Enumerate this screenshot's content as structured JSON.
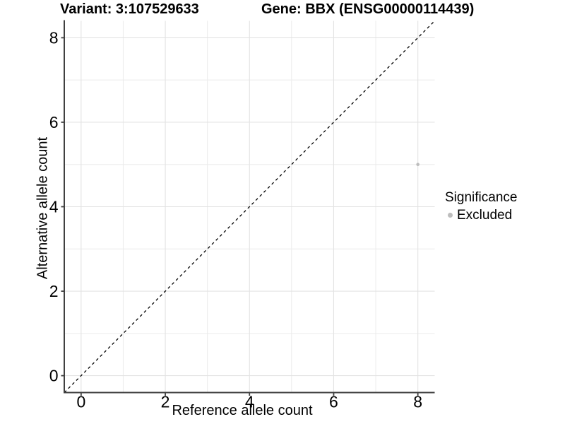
{
  "header": {
    "variant_title": "Variant: 3:107529633",
    "gene_title": "Gene: BBX (ENSG00000114439)"
  },
  "chart_data": {
    "type": "scatter",
    "title": "Variant: 3:107529633    Gene: BBX (ENSG00000114439)",
    "xlabel": "Reference allele count",
    "ylabel": "Alternative allele count",
    "xlim": [
      -0.4,
      8.4
    ],
    "ylim": [
      -0.4,
      8.4
    ],
    "x_ticks": [
      0,
      2,
      4,
      6,
      8
    ],
    "y_ticks": [
      0,
      2,
      4,
      6,
      8
    ],
    "minor_gridlines_at": [
      1,
      3,
      5,
      7
    ],
    "grid": true,
    "series": [
      {
        "name": "Excluded",
        "color": "#bdbdbd",
        "point_radius": 2.3,
        "points": [
          [
            8,
            5
          ]
        ]
      }
    ],
    "reference_line": {
      "kind": "identity",
      "from": [
        -0.4,
        -0.4
      ],
      "to": [
        8.4,
        8.4
      ],
      "style": "dashed",
      "color": "#000000"
    },
    "legend": {
      "title": "Significance",
      "position": "right",
      "entries": [
        {
          "label": "Excluded",
          "color": "#bdbdbd"
        }
      ]
    },
    "style": {
      "grid_major_color": "#e3e3e3",
      "grid_minor_color": "#ebebeb",
      "axis_line_color": "#404040",
      "tick_label_color": "#000000"
    }
  }
}
